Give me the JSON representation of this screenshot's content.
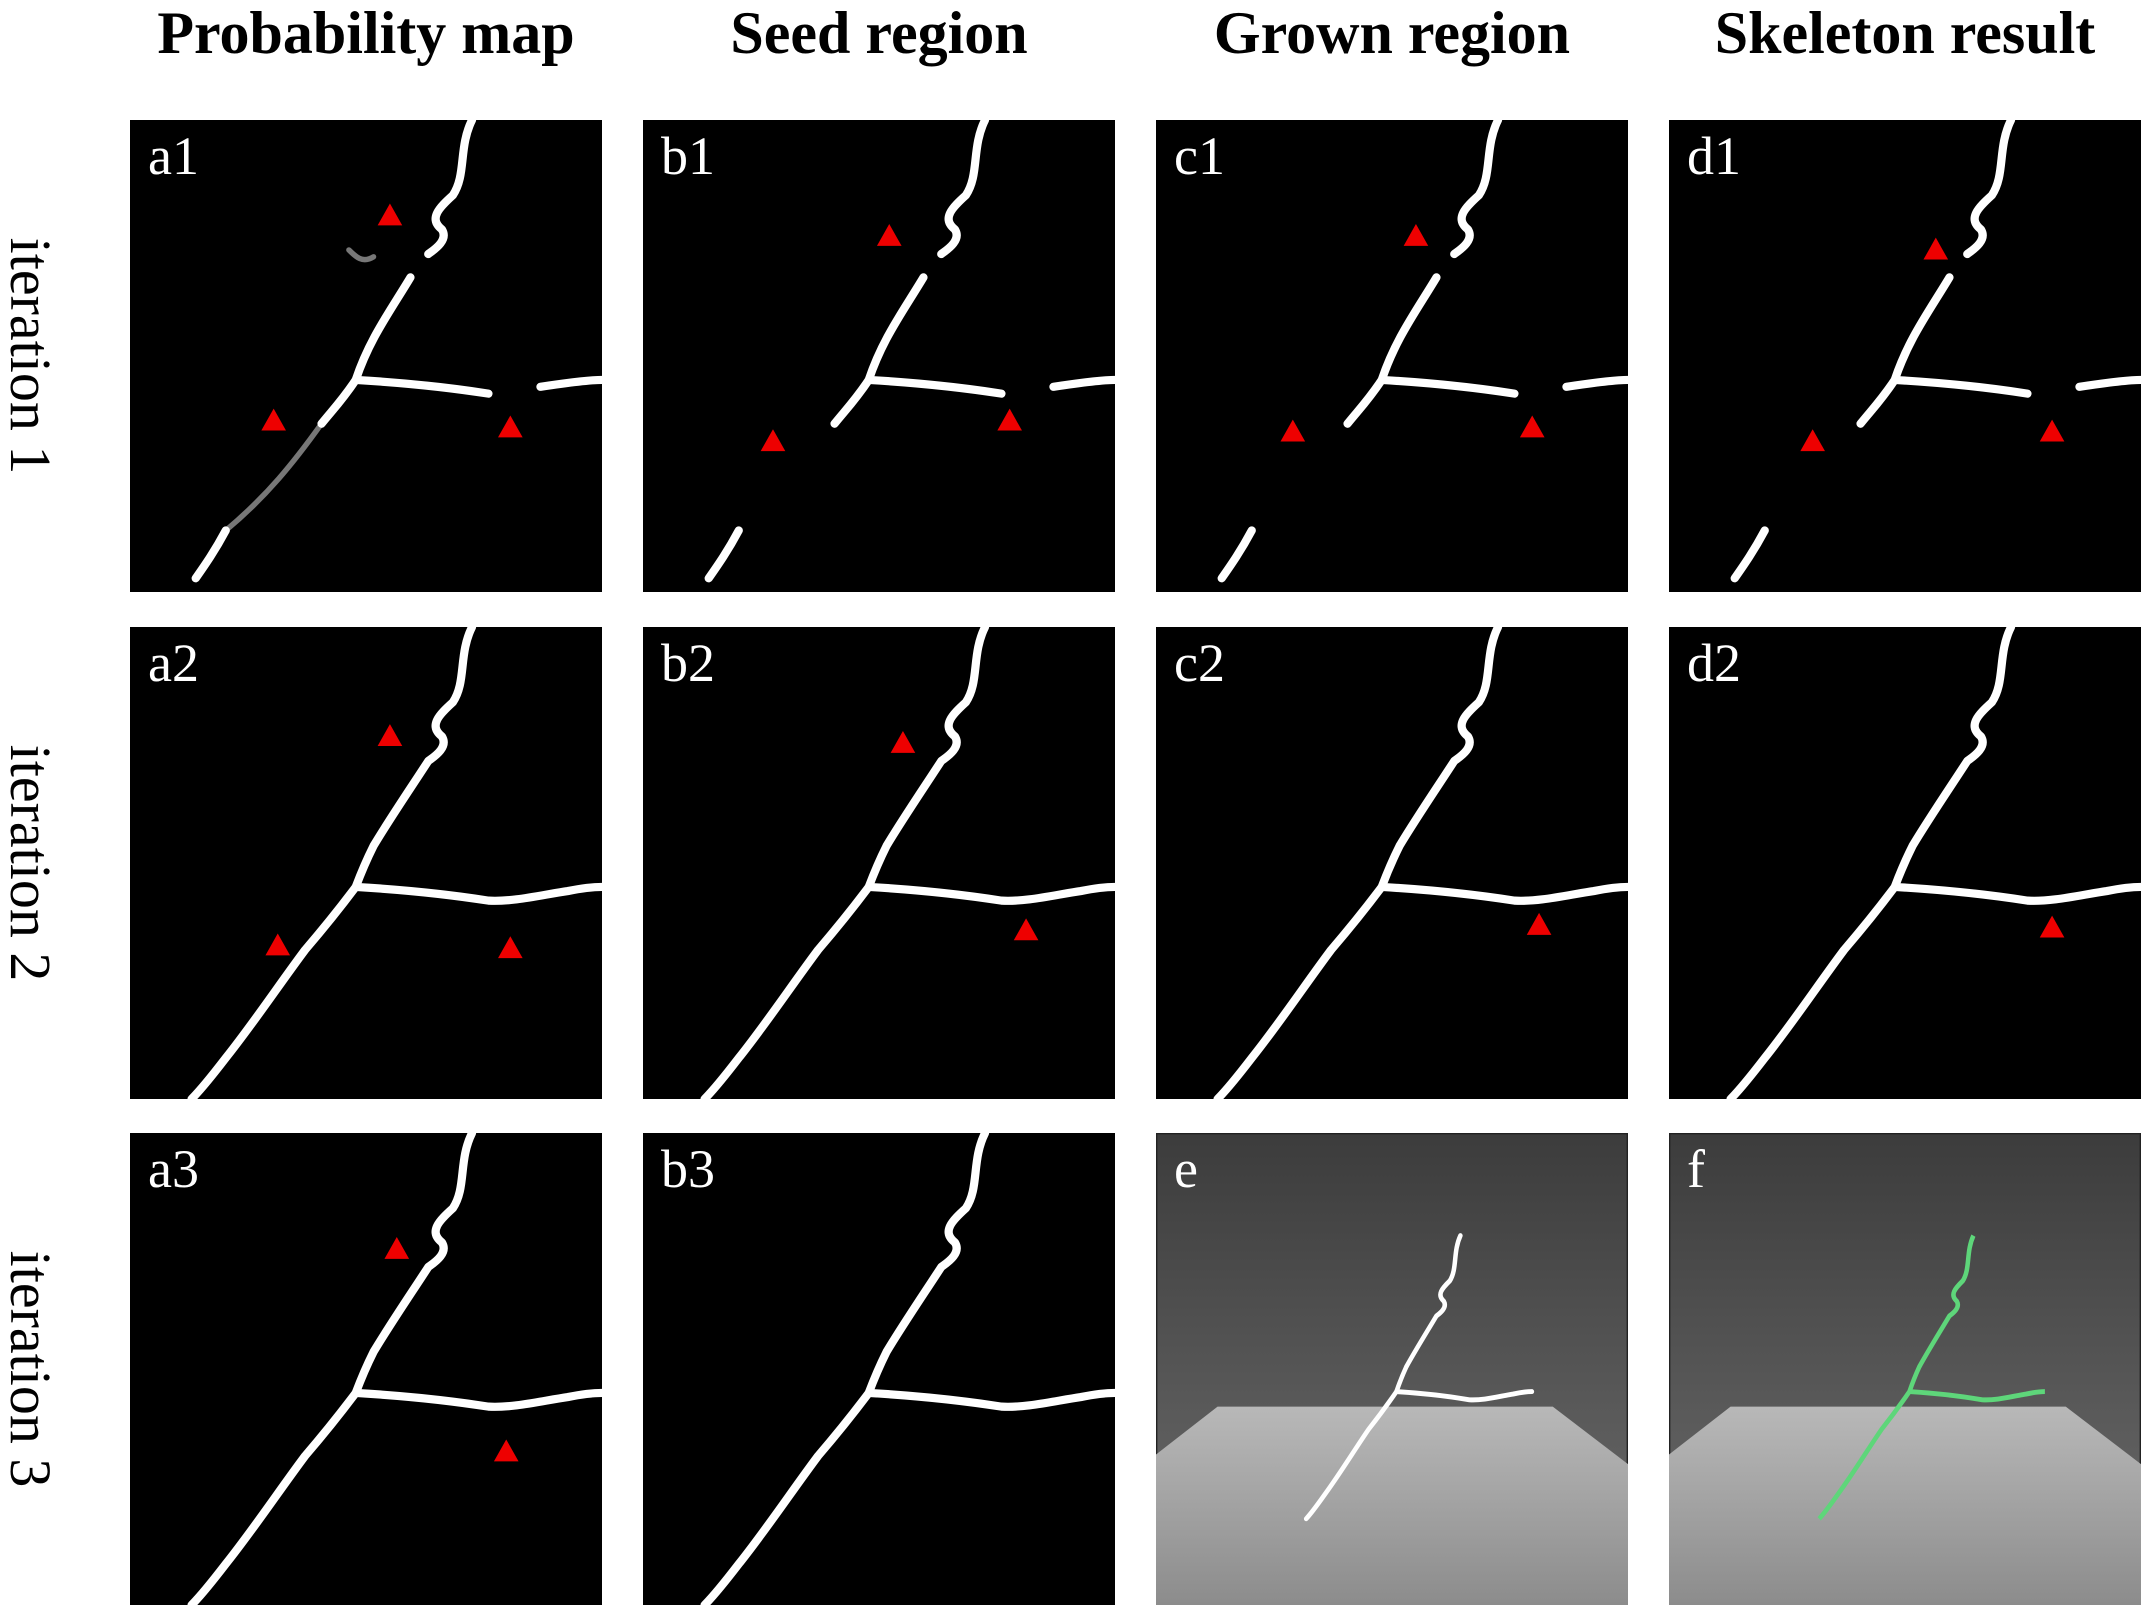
{
  "header": {
    "columns": [
      "Probability map",
      "Seed region",
      "Grown region",
      "Skeleton result"
    ]
  },
  "rows": [
    "iteration 1",
    "iteration 2",
    "iteration 3"
  ],
  "panels": [
    [
      "a1",
      "b1",
      "c1",
      "d1"
    ],
    [
      "a2",
      "b2",
      "c2",
      "d2"
    ],
    [
      "a3",
      "b3",
      "e",
      "f"
    ]
  ]
}
